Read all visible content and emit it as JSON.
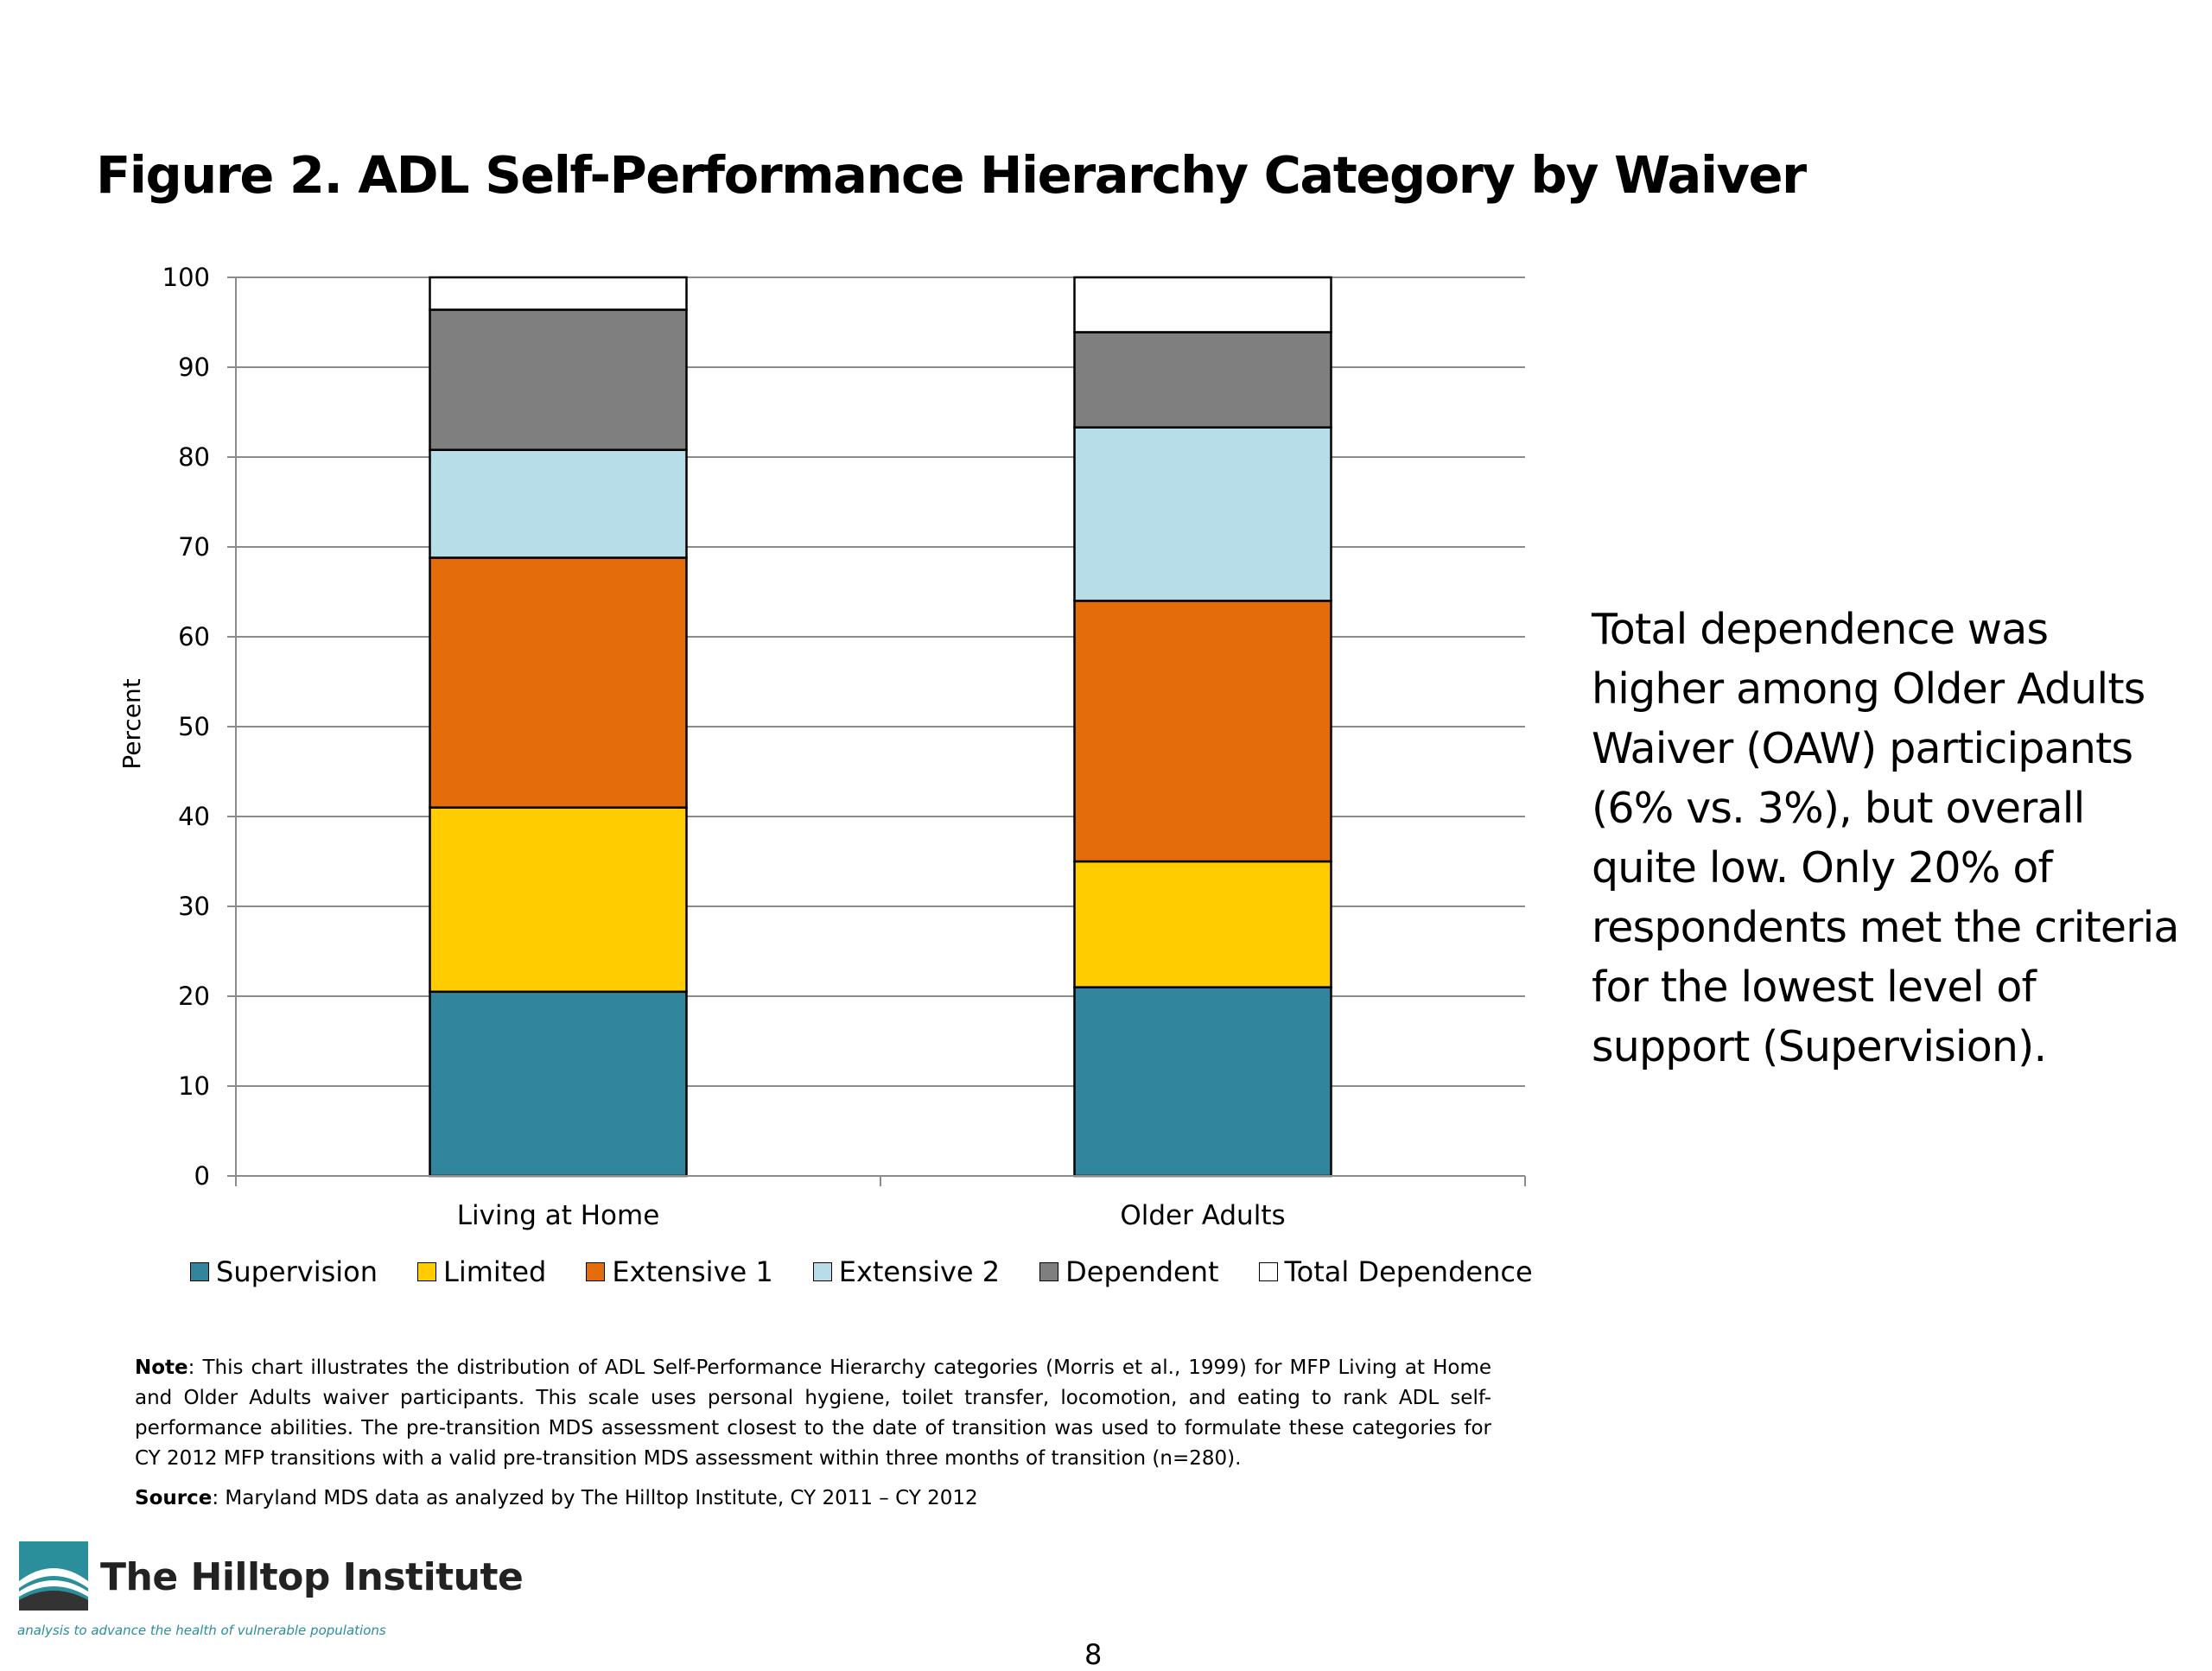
{
  "title": "Figure 2. ADL Self-Performance Hierarchy Category by Waiver",
  "callout": "Total dependence was higher among Older Adults Waiver (OAW) participants (6% vs. 3%), but overall quite low. Only 20% of respondents met the criteria for the lowest level of support (Supervision).",
  "note": {
    "label": "Note",
    "text": ": This chart illustrates the distribution of  ADL Self-Performance Hierarchy categories  (Morris et al., 1999) for MFP Living at Home and Older Adults waiver participants.  This scale uses personal hygiene, toilet transfer, locomotion, and eating to rank ADL self-performance abilities.  The pre-transition MDS assessment closest to the date of transition was used to formulate these categories for CY 2012 MFP transitions with a valid pre-transition MDS assessment within three months of transition (n=280)."
  },
  "source": {
    "label": "Source",
    "text": ": Maryland MDS data as analyzed by The Hilltop Institute, CY 2011 – CY 2012"
  },
  "logo": {
    "name": "The Hilltop Institute",
    "tagline": "analysis to advance the health of vulnerable populations",
    "colors": {
      "teal": "#2a8f9a",
      "dark": "#333333"
    }
  },
  "page_number": "8",
  "chart_data": {
    "type": "bar",
    "stacked": true,
    "categories": [
      "Living at Home",
      "Older Adults"
    ],
    "ylabel": "Percent",
    "xlabel": "",
    "ylim": [
      0,
      100
    ],
    "yticks": [
      0,
      10,
      20,
      30,
      40,
      50,
      60,
      70,
      80,
      90,
      100
    ],
    "grid": true,
    "legend_position": "bottom",
    "series": [
      {
        "name": "Supervision",
        "color": "#31859c",
        "values": [
          20.5,
          21
        ]
      },
      {
        "name": "Limited",
        "color": "#ffcc00",
        "values": [
          20.5,
          14
        ]
      },
      {
        "name": "Extensive 1",
        "color": "#e46c0a",
        "values": [
          27.8,
          29
        ]
      },
      {
        "name": "Extensive 2",
        "color": "#b7dee8",
        "values": [
          12,
          19.3
        ]
      },
      {
        "name": "Dependent",
        "color": "#7f7f7f",
        "values": [
          15.6,
          10.6
        ]
      },
      {
        "name": "Total Dependence",
        "color": "#ffffff",
        "values": [
          3.6,
          6.1
        ]
      }
    ]
  }
}
